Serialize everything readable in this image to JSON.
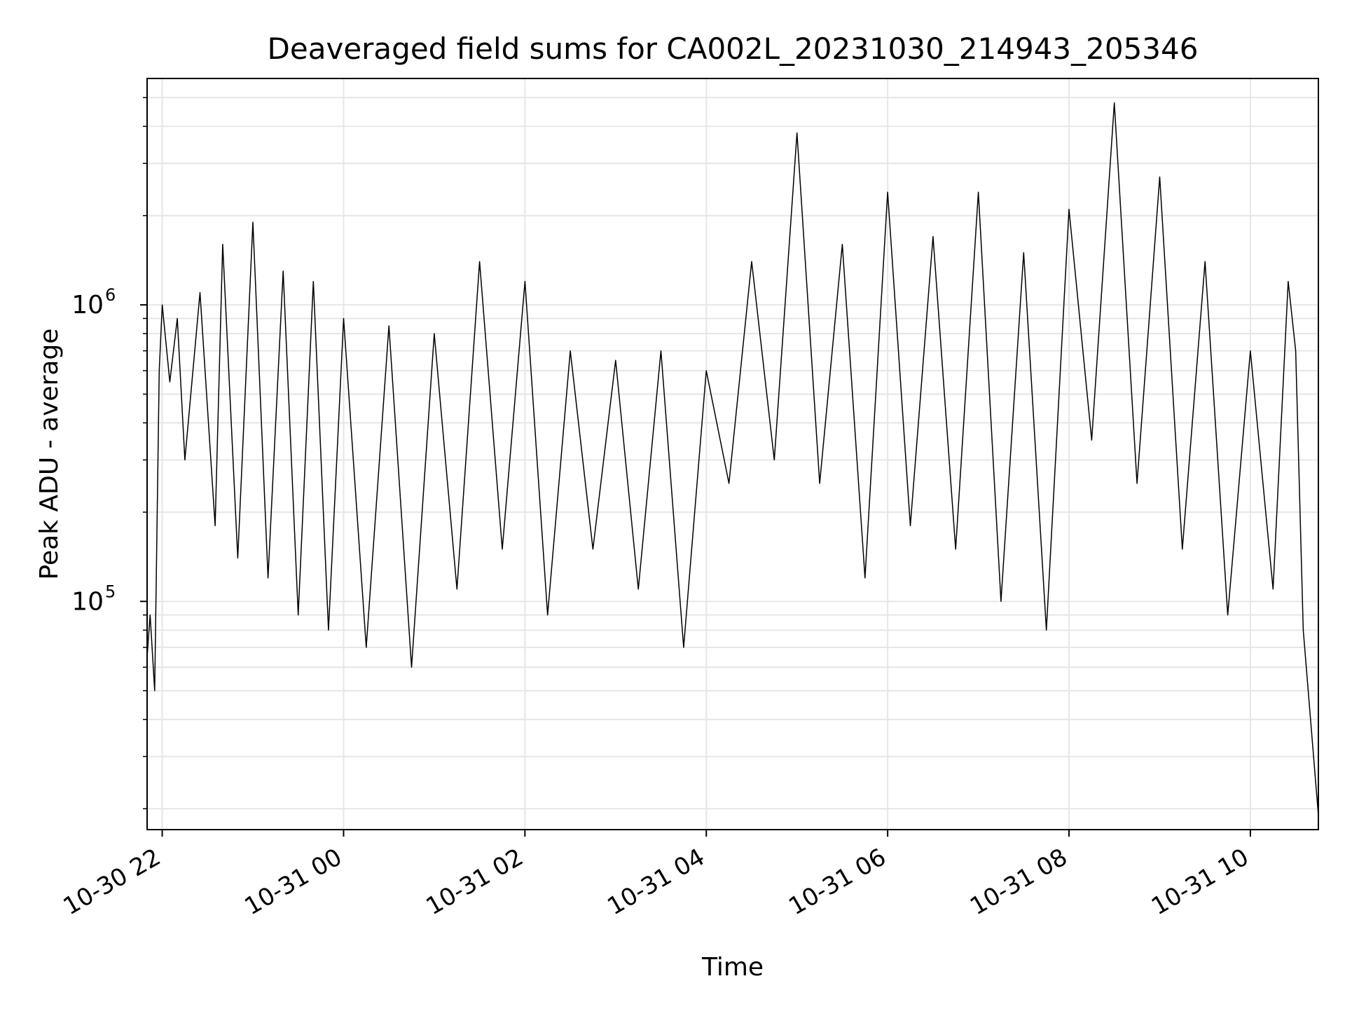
{
  "chart_data": {
    "type": "line",
    "title": "Deaveraged field sums for CA002L_20231030_214943_205346",
    "xlabel": "Time",
    "ylabel": "Peak ADU - average",
    "x_ticks": [
      "10-30 22",
      "10-31 00",
      "10-31 02",
      "10-31 04",
      "10-31 06",
      "10-31 08",
      "10-31 10"
    ],
    "y_ticks": [
      {
        "base": "10",
        "exp": "5",
        "value": 100000
      },
      {
        "base": "10",
        "exp": "6",
        "value": 1000000
      }
    ],
    "y_scale": "log",
    "xlim": [
      "2023-10-30 21:50",
      "2023-10-31 10:45"
    ],
    "ylim": [
      17000,
      5800000
    ],
    "grid": true,
    "line_color": "#000000",
    "grid_color": "#e6e6e6",
    "series": [
      {
        "points": [
          [
            "2023-10-30 21:50",
            65000
          ],
          [
            "2023-10-30 21:52",
            90000
          ],
          [
            "2023-10-30 21:55",
            50000
          ],
          [
            "2023-10-30 21:58",
            600000
          ],
          [
            "2023-10-30 22:00",
            1000000
          ],
          [
            "2023-10-30 22:05",
            550000
          ],
          [
            "2023-10-30 22:10",
            900000
          ],
          [
            "2023-10-30 22:15",
            300000
          ],
          [
            "2023-10-30 22:25",
            1100000
          ],
          [
            "2023-10-30 22:35",
            180000
          ],
          [
            "2023-10-30 22:40",
            1600000
          ],
          [
            "2023-10-30 22:50",
            140000
          ],
          [
            "2023-10-30 23:00",
            1900000
          ],
          [
            "2023-10-30 23:10",
            120000
          ],
          [
            "2023-10-30 23:20",
            1300000
          ],
          [
            "2023-10-30 23:30",
            90000
          ],
          [
            "2023-10-30 23:40",
            1200000
          ],
          [
            "2023-10-30 23:50",
            80000
          ],
          [
            "2023-10-31 00:00",
            900000
          ],
          [
            "2023-10-31 00:15",
            70000
          ],
          [
            "2023-10-31 00:30",
            850000
          ],
          [
            "2023-10-31 00:45",
            60000
          ],
          [
            "2023-10-31 01:00",
            800000
          ],
          [
            "2023-10-31 01:15",
            110000
          ],
          [
            "2023-10-31 01:30",
            1400000
          ],
          [
            "2023-10-31 01:45",
            150000
          ],
          [
            "2023-10-31 02:00",
            1200000
          ],
          [
            "2023-10-31 02:15",
            90000
          ],
          [
            "2023-10-31 02:30",
            700000
          ],
          [
            "2023-10-31 02:45",
            150000
          ],
          [
            "2023-10-31 03:00",
            650000
          ],
          [
            "2023-10-31 03:15",
            110000
          ],
          [
            "2023-10-31 03:30",
            700000
          ],
          [
            "2023-10-31 03:45",
            70000
          ],
          [
            "2023-10-31 04:00",
            600000
          ],
          [
            "2023-10-31 04:15",
            250000
          ],
          [
            "2023-10-31 04:30",
            1400000
          ],
          [
            "2023-10-31 04:45",
            300000
          ],
          [
            "2023-10-31 05:00",
            3800000
          ],
          [
            "2023-10-31 05:15",
            250000
          ],
          [
            "2023-10-31 05:30",
            1600000
          ],
          [
            "2023-10-31 05:45",
            120000
          ],
          [
            "2023-10-31 06:00",
            2400000
          ],
          [
            "2023-10-31 06:15",
            180000
          ],
          [
            "2023-10-31 06:30",
            1700000
          ],
          [
            "2023-10-31 06:45",
            150000
          ],
          [
            "2023-10-31 07:00",
            2400000
          ],
          [
            "2023-10-31 07:15",
            100000
          ],
          [
            "2023-10-31 07:30",
            1500000
          ],
          [
            "2023-10-31 07:45",
            80000
          ],
          [
            "2023-10-31 08:00",
            2100000
          ],
          [
            "2023-10-31 08:15",
            350000
          ],
          [
            "2023-10-31 08:30",
            4800000
          ],
          [
            "2023-10-31 08:45",
            250000
          ],
          [
            "2023-10-31 09:00",
            2700000
          ],
          [
            "2023-10-31 09:15",
            150000
          ],
          [
            "2023-10-31 09:30",
            1400000
          ],
          [
            "2023-10-31 09:45",
            90000
          ],
          [
            "2023-10-31 10:00",
            700000
          ],
          [
            "2023-10-31 10:15",
            110000
          ],
          [
            "2023-10-31 10:25",
            1200000
          ],
          [
            "2023-10-31 10:30",
            700000
          ],
          [
            "2023-10-31 10:35",
            80000
          ],
          [
            "2023-10-31 10:45",
            19000
          ]
        ]
      }
    ]
  }
}
